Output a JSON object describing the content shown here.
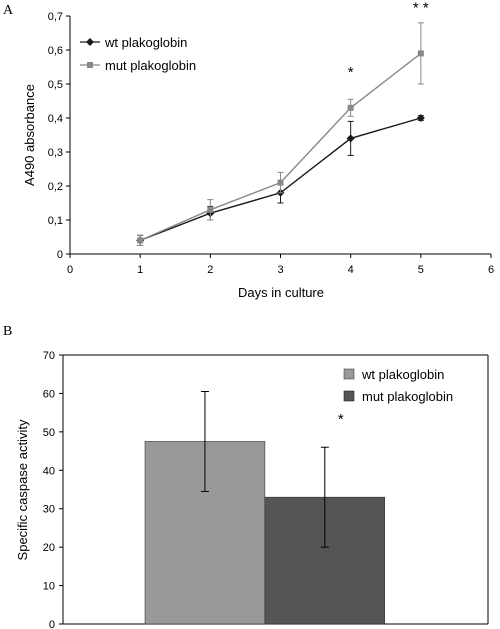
{
  "chart_data": [
    {
      "panel": "A",
      "type": "line",
      "xlabel": "Days in culture",
      "ylabel": "A490 absorbance",
      "xlim": [
        0,
        6
      ],
      "ylim": [
        0,
        0.7
      ],
      "xticks": [
        "0",
        "1",
        "2",
        "3",
        "4",
        "5",
        "6"
      ],
      "yticks": [
        "0",
        "0,1",
        "0,2",
        "0,3",
        "0,4",
        "0,5",
        "0,6",
        "0,7"
      ],
      "grid": false,
      "legend_position": "top-left",
      "series": [
        {
          "name": "wt plakoglobin",
          "color": "#1a1a1a",
          "marker": "diamond",
          "x": [
            1,
            2,
            3,
            4,
            5
          ],
          "y": [
            0.04,
            0.12,
            0.18,
            0.34,
            0.4
          ],
          "err": [
            0.015,
            0.02,
            0.03,
            0.05,
            0.007
          ]
        },
        {
          "name": "mut plakoglobin",
          "color": "#888888",
          "marker": "square",
          "x": [
            1,
            2,
            3,
            4,
            5
          ],
          "y": [
            0.04,
            0.13,
            0.21,
            0.43,
            0.59
          ],
          "err": [
            0.015,
            0.03,
            0.03,
            0.025,
            0.09
          ]
        }
      ],
      "annotations": [
        {
          "x": 4,
          "y": 0.52,
          "text": "*"
        },
        {
          "x": 5,
          "y": 0.71,
          "text": "* *"
        }
      ]
    },
    {
      "panel": "B",
      "type": "bar",
      "ylabel": "Specific caspase activity",
      "xlabel": "",
      "ylim": [
        0,
        70
      ],
      "yticks": [
        "0",
        "10",
        "20",
        "30",
        "40",
        "50",
        "60",
        "70"
      ],
      "grid": false,
      "legend_position": "top-right",
      "series": [
        {
          "name": "wt plakoglobin",
          "color": "#999999",
          "value": 47.5,
          "err": 13
        },
        {
          "name": "mut plakoglobin",
          "color": "#555555",
          "value": 33,
          "err": 13
        }
      ],
      "annotations": [
        {
          "series": 1,
          "y": 52,
          "text": "*"
        }
      ]
    }
  ]
}
